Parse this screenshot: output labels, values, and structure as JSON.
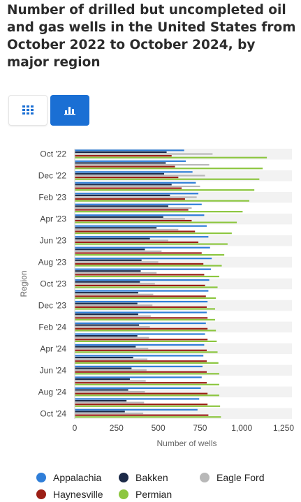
{
  "header": {
    "title": "Number of drilled but uncompleted oil and gas wells in the United States from October 2022 to October 2024, by major region"
  },
  "toolbar": {
    "table_icon": "grid-icon",
    "chart_icon": "bar-chart-icon",
    "active": "chart"
  },
  "colors": {
    "Appalachia": "#2f7ed8",
    "Bakken": "#1c2a48",
    "Eagle Ford": "#b8b8b8",
    "Haynesville": "#9c1f16",
    "Permian": "#8cc63f",
    "accent": "#1a6fd4"
  },
  "chart_data": {
    "type": "bar",
    "orientation": "horizontal",
    "title": "Number of drilled but uncompleted oil and gas wells in the United States from October 2022 to October 2024, by major region",
    "xlabel": "Number of wells",
    "ylabel": "Region",
    "xlim": [
      0,
      1300
    ],
    "xticks": [
      0,
      250,
      500,
      750,
      1000,
      1250
    ],
    "xtick_labels": [
      "0",
      "250",
      "500",
      "750",
      "1,000",
      "1,250"
    ],
    "grid": "alternating row bands",
    "legend": "bottom",
    "categories": [
      "Oct '22",
      "Nov '22",
      "Dec '22",
      "Jan '23",
      "Feb '23",
      "Mar '23",
      "Apr '23",
      "May '23",
      "Jun '23",
      "Jul '23",
      "Aug '23",
      "Sep '23",
      "Oct '23",
      "Nov '23",
      "Dec '23",
      "Jan '24",
      "Feb '24",
      "Mar '24",
      "Apr '24",
      "May '24",
      "Jun '24",
      "Jul '24",
      "Aug '24",
      "Sep '24",
      "Oct '24"
    ],
    "shown_category_labels": [
      "Oct '22",
      "Dec '22",
      "Feb '23",
      "Apr '23",
      "Jun '23",
      "Aug '23",
      "Oct '23",
      "Dec '23",
      "Feb '24",
      "Apr '24",
      "Jun '24",
      "Aug '24",
      "Oct '24"
    ],
    "series": [
      {
        "name": "Appalachia",
        "values": [
          655,
          665,
          705,
          725,
          740,
          760,
          775,
          790,
          800,
          810,
          820,
          815,
          805,
          800,
          795,
          790,
          785,
          780,
          775,
          770,
          765,
          760,
          755,
          745,
          735
        ]
      },
      {
        "name": "Bakken",
        "values": [
          550,
          545,
          535,
          580,
          570,
          560,
          530,
          490,
          450,
          420,
          400,
          395,
          390,
          380,
          375,
          380,
          385,
          375,
          365,
          350,
          340,
          330,
          320,
          310,
          300
        ]
      },
      {
        "name": "Eagle Ford",
        "values": [
          825,
          805,
          780,
          750,
          730,
          700,
          660,
          620,
          560,
          520,
          500,
          490,
          480,
          470,
          465,
          455,
          450,
          445,
          440,
          435,
          430,
          425,
          420,
          415,
          410
        ]
      },
      {
        "name": "Haynesville",
        "values": [
          580,
          600,
          620,
          640,
          660,
          680,
          700,
          720,
          740,
          760,
          770,
          775,
          780,
          785,
          790,
          795,
          795,
          795,
          790,
          790,
          790,
          790,
          795,
          795,
          800
        ]
      },
      {
        "name": "Permian",
        "values": [
          1150,
          1125,
          1105,
          1075,
          1045,
          1005,
          970,
          940,
          915,
          895,
          880,
          865,
          855,
          845,
          840,
          840,
          845,
          850,
          855,
          860,
          865,
          865,
          865,
          870,
          875
        ]
      }
    ]
  },
  "legend": [
    {
      "name": "Appalachia",
      "color": "#2f7ed8"
    },
    {
      "name": "Bakken",
      "color": "#1c2a48"
    },
    {
      "name": "Eagle Ford",
      "color": "#b8b8b8"
    },
    {
      "name": "Haynesville",
      "color": "#9c1f16"
    },
    {
      "name": "Permian",
      "color": "#8cc63f"
    }
  ]
}
